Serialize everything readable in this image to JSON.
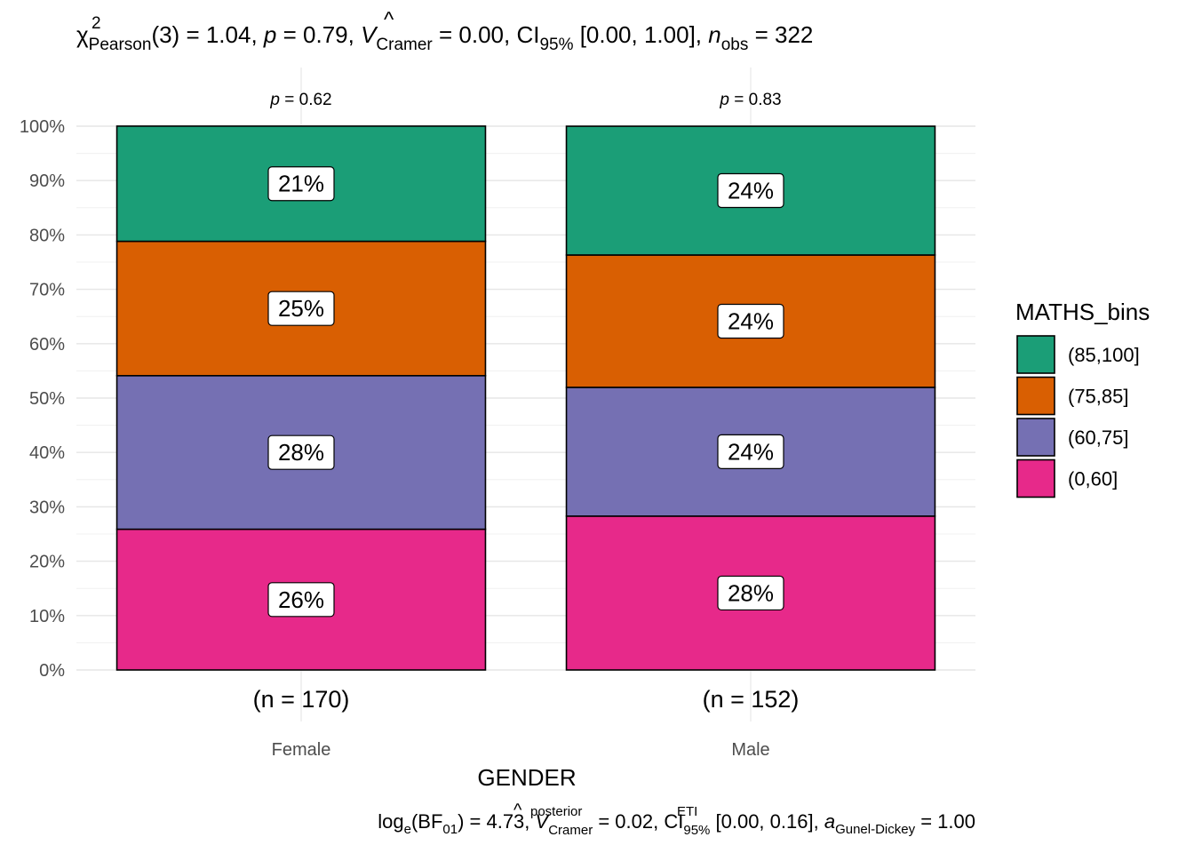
{
  "chart_data": {
    "type": "bar",
    "stacked": true,
    "percent": true,
    "title": {
      "chi": "χ",
      "chi_sup": "2",
      "chi_sub": "Pearson",
      "df_part": "(3)",
      "stat_part": " = 1.04, ",
      "p_sym": "p",
      "p_part": " = 0.79, ",
      "v_sym": "V",
      "v_hat": "^",
      "v_sub": "Cramer",
      "v_part": " = 0.00, ",
      "ci_sym": "CI",
      "ci_sub": "95%",
      "ci_part": " [0.00, 1.00], ",
      "n_sym": "n",
      "n_sub": "obs",
      "n_part": " = 322"
    },
    "caption": {
      "log": "log",
      "log_sub": "e",
      "bf_open": "(BF",
      "bf_sub": "01",
      "bf_part": ") = 4.73, ",
      "v_sym": "V",
      "v_hat": "^",
      "v_sup": "posterior",
      "v_sub": "Cramer",
      "v_part": " = 0.02, ",
      "ci_sym": "CI",
      "ci_sup": "ETI",
      "ci_sub": "95%",
      "ci_part": " [0.00, 0.16], ",
      "a_sym": "a",
      "a_sub": "Gunel-Dickey",
      "a_part": " = 1.00"
    },
    "xlabel": "GENDER",
    "ylabel": "",
    "ylim": [
      0,
      100
    ],
    "y_ticks": [
      "0%",
      "10%",
      "20%",
      "30%",
      "40%",
      "50%",
      "60%",
      "70%",
      "80%",
      "90%",
      "100%"
    ],
    "categories": [
      "Female",
      "Male"
    ],
    "n_labels": [
      "(n = 170)",
      "(n = 152)"
    ],
    "p_labels": [
      {
        "sym": "p",
        "text": " = 0.62"
      },
      {
        "sym": "p",
        "text": " = 0.83"
      }
    ],
    "legend_title": "MATHS_bins",
    "legend_position": "right",
    "grid": true,
    "series": [
      {
        "name": "(0,60]",
        "color": "#E7298A",
        "values": [
          25.88,
          28.29
        ],
        "labels": [
          "26%",
          "28%"
        ]
      },
      {
        "name": "(60,75]",
        "color": "#7570B3",
        "values": [
          28.24,
          23.68
        ],
        "labels": [
          "28%",
          "24%"
        ]
      },
      {
        "name": "(75,85]",
        "color": "#D95F02",
        "values": [
          24.71,
          24.34
        ],
        "labels": [
          "25%",
          "24%"
        ]
      },
      {
        "name": "(85,100]",
        "color": "#1B9E77",
        "values": [
          21.18,
          23.68
        ],
        "labels": [
          "21%",
          "24%"
        ]
      }
    ]
  }
}
